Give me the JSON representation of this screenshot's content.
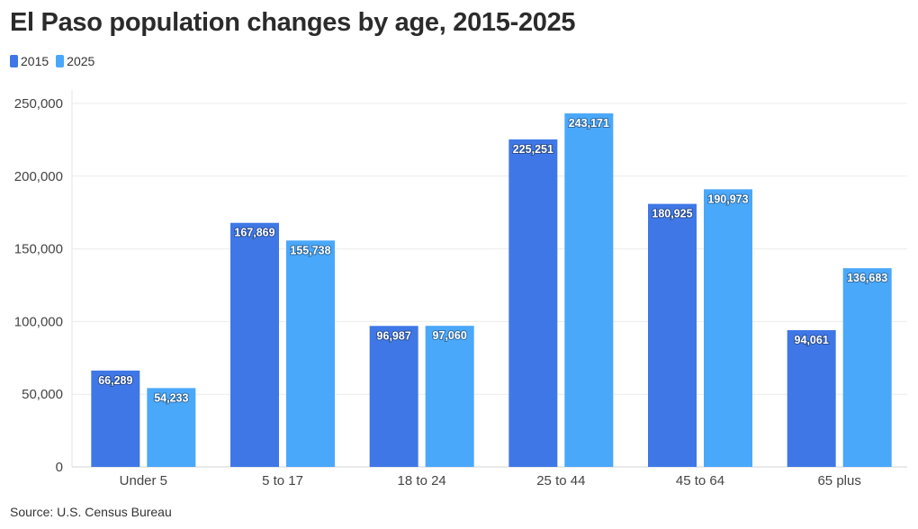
{
  "chart_data": {
    "type": "bar",
    "title": "El Paso population changes by age, 2015-2025",
    "categories": [
      "Under 5",
      "5 to 17",
      "18 to 24",
      "25 to 44",
      "45 to 64",
      "65 plus"
    ],
    "series": [
      {
        "name": "2015",
        "color": "#3f78e6",
        "values": [
          66289,
          167869,
          96987,
          225251,
          180925,
          94061
        ],
        "labels": [
          "66,289",
          "167,869",
          "96,987",
          "225,251",
          "180,925",
          "94,061"
        ]
      },
      {
        "name": "2025",
        "color": "#4aa8fb",
        "values": [
          54233,
          155738,
          97060,
          243171,
          190973,
          136683
        ],
        "labels": [
          "54,233",
          "155,738",
          "97,060",
          "243,171",
          "190,973",
          "136,683"
        ]
      }
    ],
    "ylim": [
      0,
      250000
    ],
    "yticks": [
      0,
      50000,
      100000,
      150000,
      200000,
      250000
    ],
    "ytick_labels": [
      "0",
      "50,000",
      "100,000",
      "150,000",
      "200,000",
      "250,000"
    ],
    "grid": true,
    "legend_position": "top-left",
    "source": "Source: U.S. Census Bureau"
  }
}
